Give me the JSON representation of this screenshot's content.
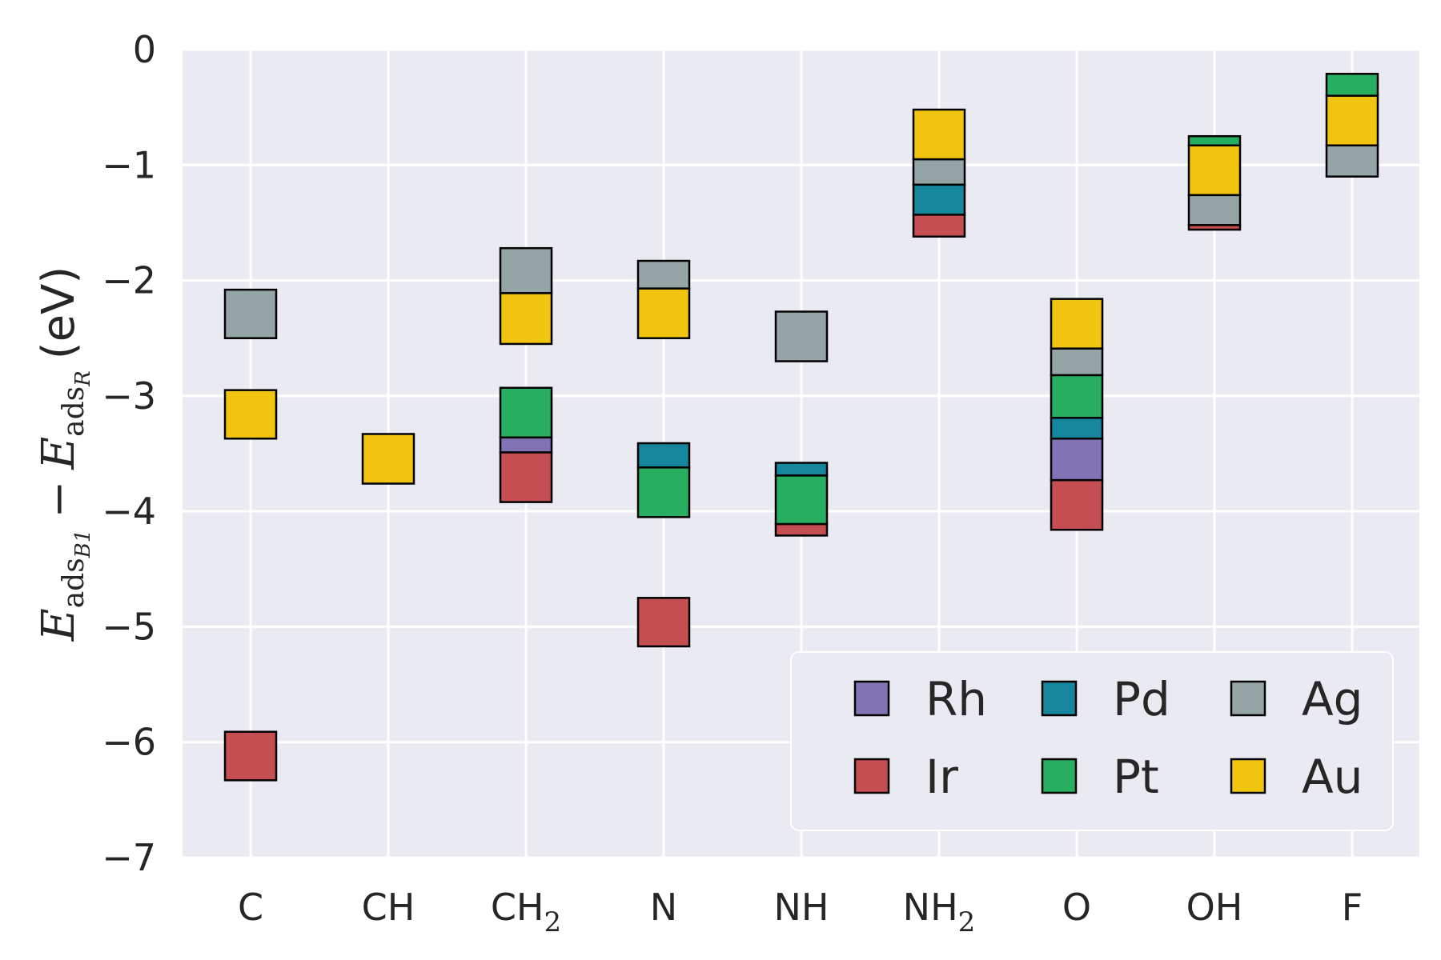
{
  "chart_data": {
    "type": "bar",
    "subtype": "floating stacked range bars",
    "title": "",
    "xlabel": "",
    "ylabel": {
      "main": "E",
      "sub1": "ads",
      "sub2": "B1",
      "minus": "−",
      "main2": "E",
      "sub3": "ads",
      "sub4": "R",
      "unit": "(eV)"
    },
    "ylim": [
      -7,
      0
    ],
    "yticks": [
      {
        "value": 0,
        "label": "0"
      },
      {
        "value": -1,
        "label": "−1"
      },
      {
        "value": -2,
        "label": "−2"
      },
      {
        "value": -3,
        "label": "−3"
      },
      {
        "value": -4,
        "label": "−4"
      },
      {
        "value": -5,
        "label": "−5"
      },
      {
        "value": -6,
        "label": "−6"
      },
      {
        "value": -7,
        "label": "−7"
      }
    ],
    "categories": [
      {
        "base": "C",
        "sub": ""
      },
      {
        "base": "CH",
        "sub": ""
      },
      {
        "base": "CH",
        "sub": "2"
      },
      {
        "base": "N",
        "sub": ""
      },
      {
        "base": "NH",
        "sub": ""
      },
      {
        "base": "NH",
        "sub": "2"
      },
      {
        "base": "O",
        "sub": ""
      },
      {
        "base": "OH",
        "sub": ""
      },
      {
        "base": "F",
        "sub": ""
      }
    ],
    "grid": true,
    "background_color": "#eaeaf2",
    "legend_placement": "lower-right",
    "legend_columns": 3,
    "series": [
      {
        "name": "Rh",
        "color": "#8172b3",
        "segments": [
          {
            "category": "CH2",
            "low": -3.49,
            "high": -3.36
          },
          {
            "category": "O",
            "low": -3.73,
            "high": -3.37
          }
        ]
      },
      {
        "name": "Ir",
        "color": "#c44e52",
        "segments": [
          {
            "category": "C",
            "low": -6.33,
            "high": -5.91
          },
          {
            "category": "CH2",
            "low": -3.92,
            "high": -3.49
          },
          {
            "category": "N",
            "low": -5.17,
            "high": -4.75
          },
          {
            "category": "NH",
            "low": -4.21,
            "high": -4.11
          },
          {
            "category": "NH2",
            "low": -1.62,
            "high": -1.43
          },
          {
            "category": "O",
            "low": -4.16,
            "high": -3.73
          },
          {
            "category": "OH",
            "low": -1.56,
            "high": -1.52
          }
        ]
      },
      {
        "name": "Pd",
        "color": "#15869c",
        "segments": [
          {
            "category": "N",
            "low": -3.62,
            "high": -3.41
          },
          {
            "category": "NH",
            "low": -3.69,
            "high": -3.58
          },
          {
            "category": "NH2",
            "low": -1.43,
            "high": -1.17
          },
          {
            "category": "O",
            "low": -3.37,
            "high": -3.19
          }
        ]
      },
      {
        "name": "Pt",
        "color": "#27ae60",
        "segments": [
          {
            "category": "CH2",
            "low": -3.36,
            "high": -2.93
          },
          {
            "category": "N",
            "low": -4.05,
            "high": -3.62
          },
          {
            "category": "NH",
            "low": -4.11,
            "high": -3.69
          },
          {
            "category": "O",
            "low": -3.19,
            "high": -2.82
          },
          {
            "category": "OH",
            "low": -0.83,
            "high": -0.75
          },
          {
            "category": "F",
            "low": -0.4,
            "high": -0.21
          }
        ]
      },
      {
        "name": "Ag",
        "color": "#95a5a6",
        "segments": [
          {
            "category": "C",
            "low": -2.5,
            "high": -2.08
          },
          {
            "category": "CH2",
            "low": -2.11,
            "high": -1.72
          },
          {
            "category": "N",
            "low": -2.07,
            "high": -1.83
          },
          {
            "category": "NH",
            "low": -2.7,
            "high": -2.27
          },
          {
            "category": "NH2",
            "low": -1.17,
            "high": -0.95
          },
          {
            "category": "O",
            "low": -2.82,
            "high": -2.59
          },
          {
            "category": "OH",
            "low": -1.52,
            "high": -1.26
          },
          {
            "category": "F",
            "low": -1.1,
            "high": -0.83
          }
        ]
      },
      {
        "name": "Au",
        "color": "#f1c40f",
        "segments": [
          {
            "category": "C",
            "low": -3.37,
            "high": -2.95
          },
          {
            "category": "CH",
            "low": -3.76,
            "high": -3.33
          },
          {
            "category": "CH2",
            "low": -2.55,
            "high": -2.11
          },
          {
            "category": "N",
            "low": -2.5,
            "high": -2.07
          },
          {
            "category": "NH2",
            "low": -0.95,
            "high": -0.52
          },
          {
            "category": "O",
            "low": -2.59,
            "high": -2.16
          },
          {
            "category": "OH",
            "low": -1.26,
            "high": -0.83
          },
          {
            "category": "F",
            "low": -0.83,
            "high": -0.4
          }
        ]
      }
    ],
    "legend_order": [
      "Rh",
      "Pd",
      "Ag",
      "Ir",
      "Pt",
      "Au"
    ]
  }
}
